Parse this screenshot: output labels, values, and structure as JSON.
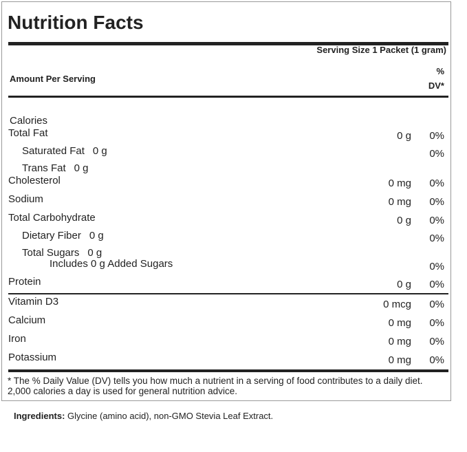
{
  "title": "Nutrition Facts",
  "serving_size": "Serving Size 1 Packet (1 gram)",
  "amount_per_serving": "Amount Per Serving",
  "dv_header": {
    "line1": "%",
    "line2": "DV*"
  },
  "rows": [
    {
      "name": "Calories"
    },
    {
      "name": "Total Fat",
      "amount": "0 g",
      "dv": "0%"
    },
    {
      "name": "Saturated Fat",
      "amount": "0 g",
      "dv": "0%"
    },
    {
      "name": "Trans Fat",
      "amount": "0 g"
    },
    {
      "name": "Cholesterol",
      "amount": "0 mg",
      "dv": "0%"
    },
    {
      "name": "Sodium",
      "amount": "0 mg",
      "dv": "0%"
    },
    {
      "name": "Total Carbohydrate",
      "amount": "0 g",
      "dv": "0%"
    },
    {
      "name": "Dietary Fiber",
      "amount": "0 g",
      "dv": "0%"
    },
    {
      "name": "Total Sugars",
      "amount": "0 g"
    },
    {
      "name": "Includes 0 g Added Sugars",
      "dv": "0%"
    },
    {
      "name": "Protein",
      "amount": "0 g",
      "dv": "0%"
    },
    {
      "name": "Vitamin D3",
      "amount": "0 mcg",
      "dv": "0%"
    },
    {
      "name": "Calcium",
      "amount": "0 mg",
      "dv": "0%"
    },
    {
      "name": "Iron",
      "amount": "0 mg",
      "dv": "0%"
    },
    {
      "name": "Potassium",
      "amount": "0 mg",
      "dv": "0%"
    }
  ],
  "footnote": "* The % Daily Value (DV) tells you how much a nutrient in a serving of food contributes to a daily diet. 2,000 calories a day is used for general nutrition advice.",
  "ingredients": {
    "label": "Ingredients:",
    "text": "Glycine (amino acid), non-GMO Stevia Leaf Extract."
  }
}
